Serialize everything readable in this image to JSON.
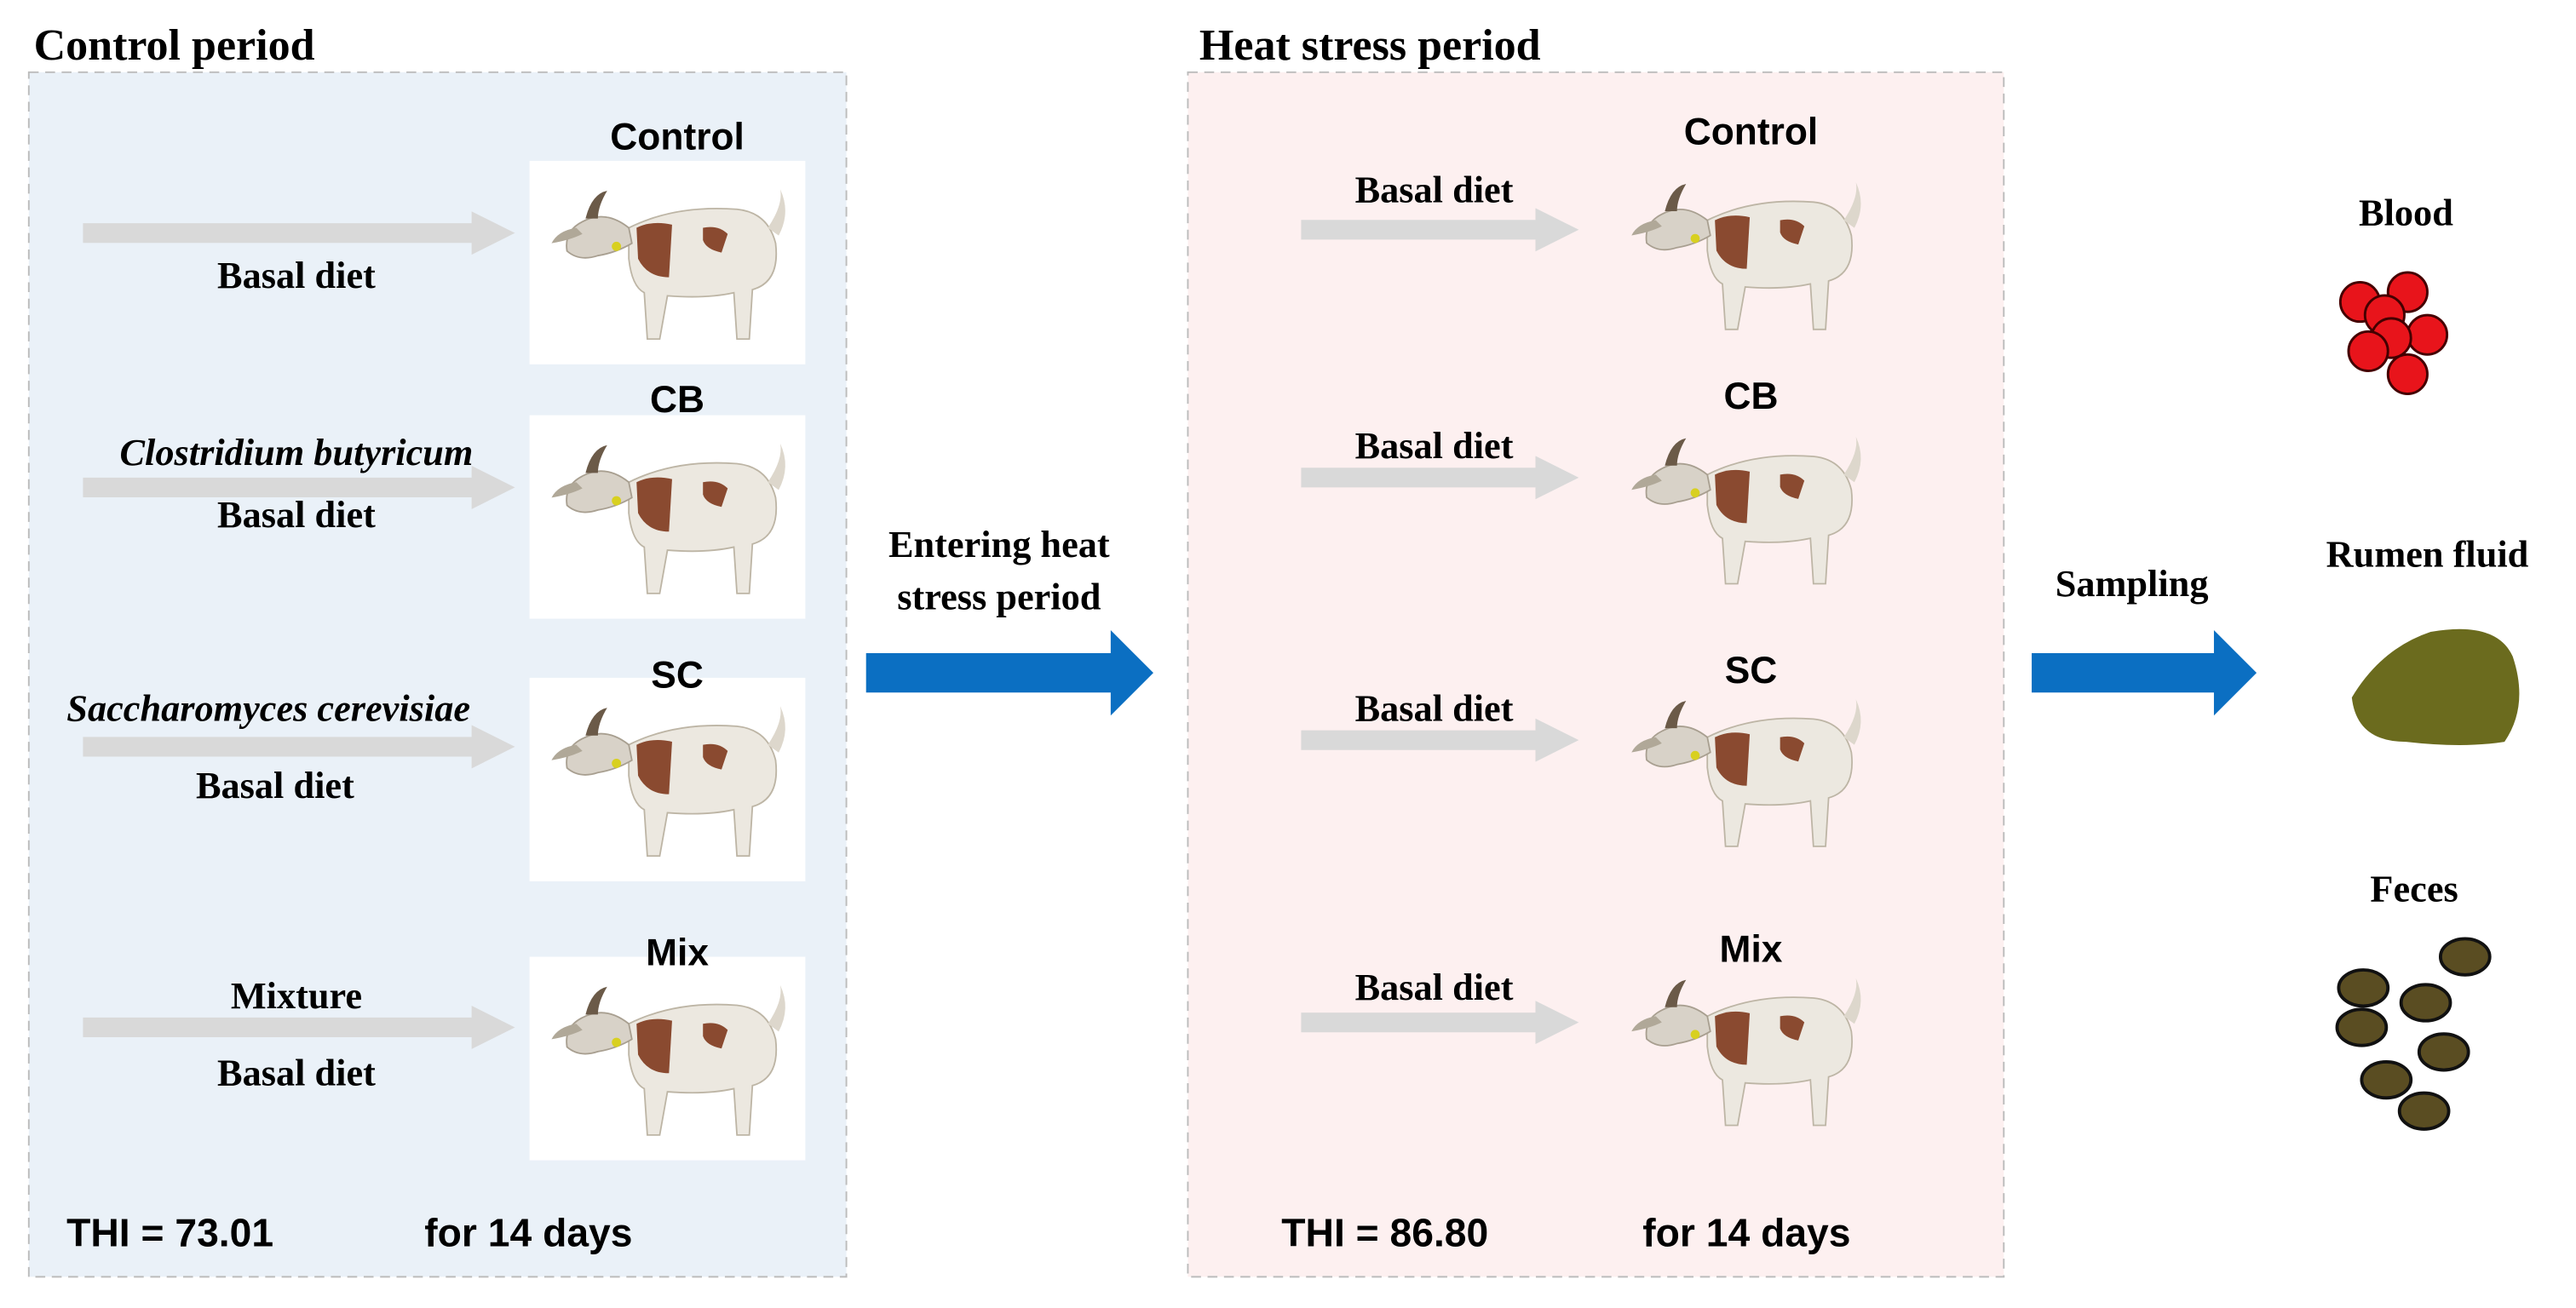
{
  "control_period": {
    "title": "Control period",
    "groups": [
      {
        "name": "Control",
        "diet_lines": [
          "Basal diet"
        ]
      },
      {
        "name": "CB",
        "diet_lines": [
          "Clostridium butyricum",
          "Basal diet"
        ]
      },
      {
        "name": "SC",
        "diet_lines": [
          "Saccharomyces cerevisiae",
          "Basal diet"
        ]
      },
      {
        "name": "Mix",
        "diet_lines": [
          "Mixture",
          "Basal diet"
        ]
      }
    ],
    "thi": "THI = 73.01",
    "duration": "for 14 days"
  },
  "transition": {
    "lines": [
      "Entering heat",
      "stress period"
    ]
  },
  "heat_stress_period": {
    "title": "Heat stress period",
    "groups": [
      {
        "name": "Control",
        "diet": "Basal diet"
      },
      {
        "name": "CB",
        "diet": "Basal diet"
      },
      {
        "name": "SC",
        "diet": "Basal diet"
      },
      {
        "name": "Mix",
        "diet": "Basal diet"
      }
    ],
    "thi": "THI = 86.80",
    "duration": "for 14 days"
  },
  "sampling": {
    "label": "Sampling",
    "samples": [
      "Blood",
      "Rumen fluid",
      "Feces"
    ]
  }
}
